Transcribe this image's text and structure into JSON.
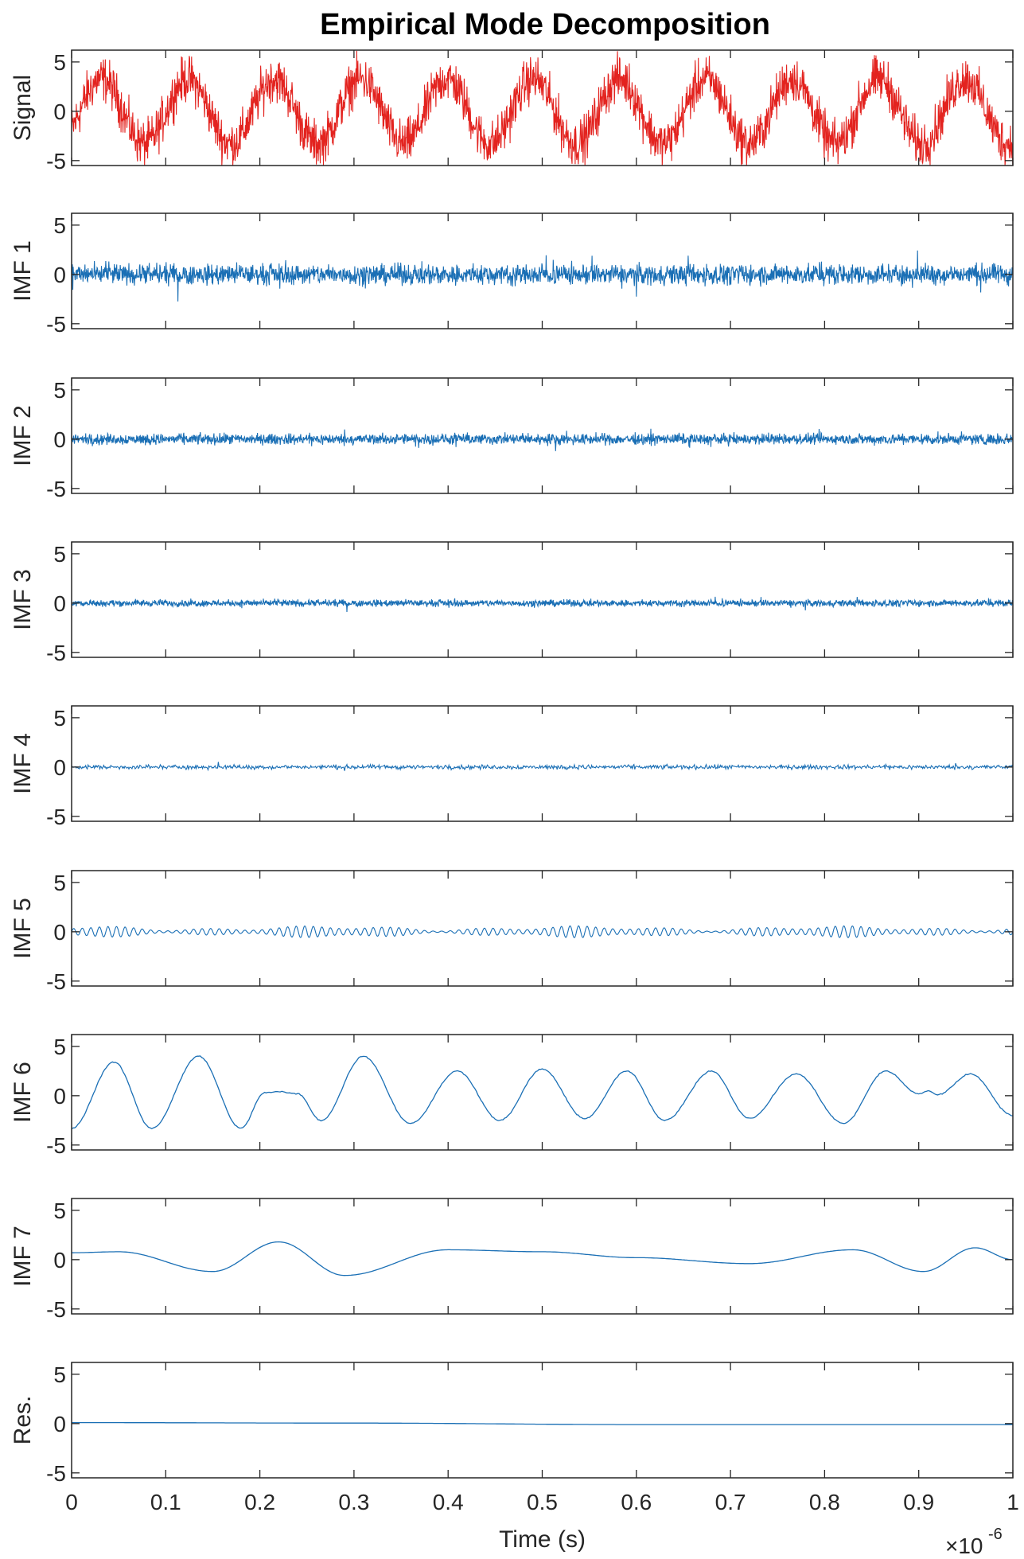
{
  "chart_data": {
    "type": "line",
    "title": "Empirical Mode Decomposition",
    "xlabel": "Time (s)",
    "x_exponent_label": "×10",
    "x_exponent": "-6",
    "xlim": [
      0,
      1
    ],
    "x_scale": 1e-06,
    "xticks": [
      "0",
      "0.1",
      "0.2",
      "0.3",
      "0.4",
      "0.5",
      "0.6",
      "0.7",
      "0.8",
      "0.9",
      "1"
    ],
    "ylim": [
      -5.5,
      6.2
    ],
    "yticks": [
      "-5",
      "0",
      "5"
    ],
    "grid": false,
    "panels": [
      {
        "ylabel": "Signal",
        "color": "#E3231F",
        "kind": "sine+noise",
        "amplitude": 3.3,
        "cycles": 10.9,
        "phase": -0.6,
        "noise": 1.9,
        "samples": 2400
      },
      {
        "ylabel": "IMF 1",
        "color": "#1A6FB5",
        "kind": "noise",
        "noise": 0.85,
        "samples": 2400
      },
      {
        "ylabel": "IMF 2",
        "color": "#1A6FB5",
        "kind": "noise",
        "noise": 0.45,
        "samples": 2400
      },
      {
        "ylabel": "IMF 3",
        "color": "#1A6FB5",
        "kind": "noise",
        "noise": 0.28,
        "samples": 2400
      },
      {
        "ylabel": "IMF 4",
        "color": "#1A6FB5",
        "kind": "noise",
        "noise": 0.18,
        "samples": 1200
      },
      {
        "ylabel": "IMF 5",
        "color": "#1A6FB5",
        "kind": "oscillation",
        "amplitude": 0.55,
        "cycles": 110,
        "samples": 2400
      },
      {
        "ylabel": "IMF 6",
        "color": "#1A6FB5",
        "kind": "keypoints",
        "x": [
          0,
          0.045,
          0.085,
          0.135,
          0.18,
          0.205,
          0.22,
          0.24,
          0.265,
          0.31,
          0.36,
          0.41,
          0.455,
          0.5,
          0.545,
          0.59,
          0.63,
          0.68,
          0.72,
          0.77,
          0.82,
          0.865,
          0.9,
          0.91,
          0.92,
          0.955,
          1.0
        ],
        "y": [
          -3.3,
          3.4,
          -3.3,
          4.0,
          -3.3,
          0.3,
          0.4,
          0.2,
          -2.5,
          4.0,
          -2.8,
          2.5,
          -2.5,
          2.7,
          -2.3,
          2.5,
          -2.5,
          2.5,
          -2.3,
          2.2,
          -2.8,
          2.5,
          0.2,
          0.5,
          0.1,
          2.2,
          -2.0
        ]
      },
      {
        "ylabel": "IMF 7",
        "color": "#1A6FB5",
        "kind": "keypoints",
        "x": [
          0,
          0.05,
          0.15,
          0.22,
          0.29,
          0.4,
          0.5,
          0.6,
          0.72,
          0.83,
          0.905,
          0.96,
          1.0
        ],
        "y": [
          0.7,
          0.8,
          -1.2,
          1.8,
          -1.6,
          1.0,
          0.8,
          0.2,
          -0.4,
          1.0,
          -1.2,
          1.2,
          0.0
        ]
      },
      {
        "ylabel": "Res.",
        "color": "#1A6FB5",
        "kind": "keypoints",
        "x": [
          0,
          0.3,
          0.6,
          1.0
        ],
        "y": [
          0.1,
          0.05,
          -0.1,
          -0.1
        ]
      }
    ]
  }
}
